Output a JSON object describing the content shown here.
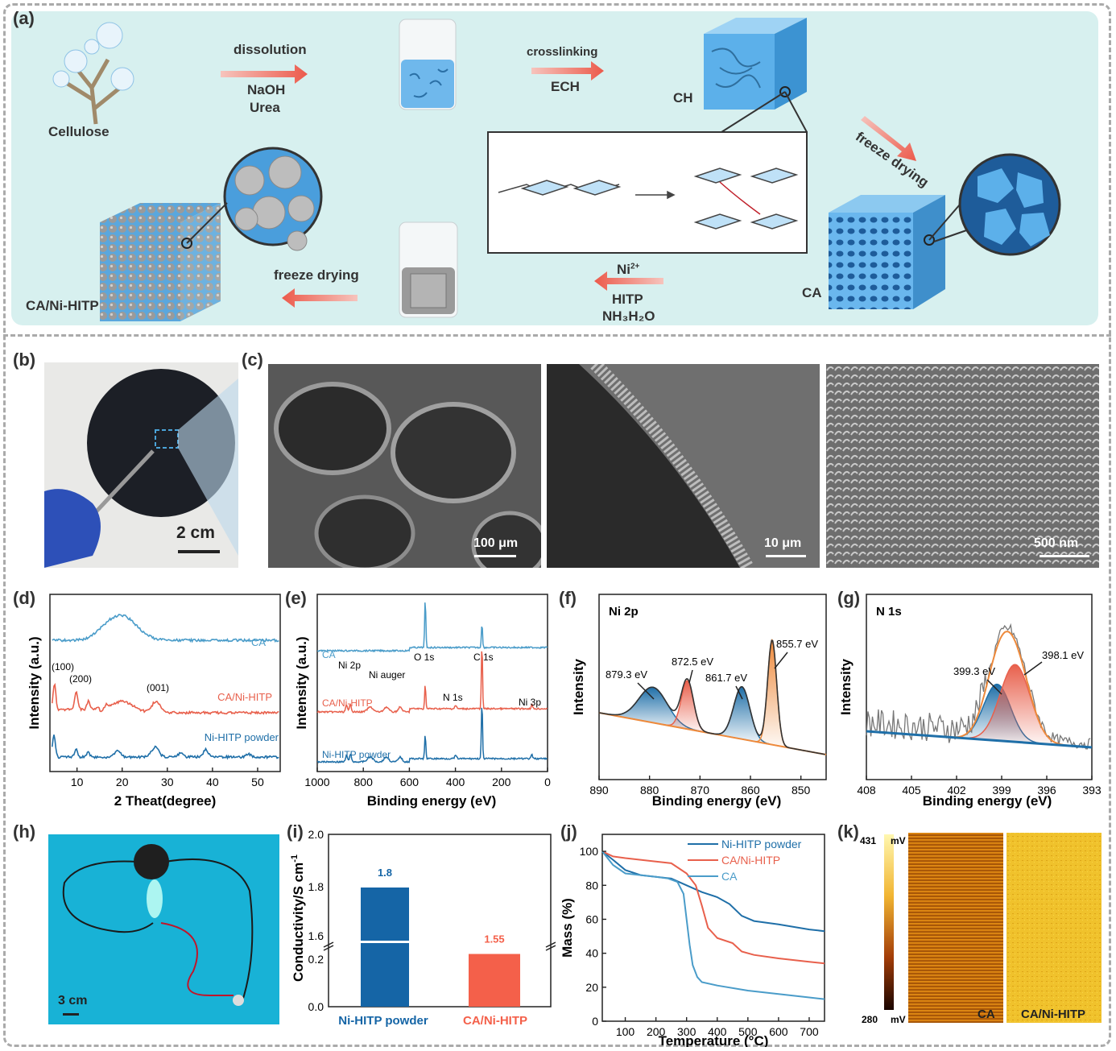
{
  "panels": {
    "a": "(a)",
    "b": "(b)",
    "c": "(c)",
    "d": "(d)",
    "e": "(e)",
    "f": "(f)",
    "g": "(g)",
    "h": "(h)",
    "i": "(i)",
    "j": "(j)",
    "k": "(k)"
  },
  "scheme": {
    "cellulose": "Cellulose",
    "dissolution": "dissolution",
    "naoh": "NaOH",
    "urea": "Urea",
    "crosslinking": "crosslinking",
    "ech": "ECH",
    "ch": "CH",
    "freeze_drying_1": "freeze drying",
    "ca": "CA",
    "ni": "Ni",
    "ni_sup": "2+",
    "hitp": "HITP",
    "nh3h2o": "NH₃H₂O",
    "freeze_drying_2": "freeze drying",
    "cani": "CA/Ni-HITP"
  },
  "photo_b": {
    "scale": "2 cm"
  },
  "sem": {
    "s1": "100 μm",
    "s2": "10 μm",
    "s3": "500 nm"
  },
  "photo_h": {
    "scale": "3 cm"
  },
  "colors": {
    "ca": "#4a9cc9",
    "cani": "#e8604c",
    "nihitp": "#1f6fa8",
    "bar_blue": "#1565a6",
    "bar_red": "#f4604a"
  },
  "chart_data": [
    {
      "id": "d",
      "type": "line",
      "xlabel": "2 Theat(degree)",
      "ylabel": "Intensity (a.u.)",
      "xlim": [
        4,
        55
      ],
      "xticks": [
        10,
        20,
        30,
        40,
        50
      ],
      "series": [
        {
          "name": "CA"
        },
        {
          "name": "CA/Ni-HITP"
        },
        {
          "name": "Ni-HITP powder"
        }
      ],
      "annotations": [
        "(100)",
        "(200)",
        "(001)"
      ]
    },
    {
      "id": "e",
      "type": "line",
      "xlabel": "Binding energy (eV)",
      "ylabel": "Intensity (a.u.)",
      "xlim": [
        1000,
        0
      ],
      "xticks": [
        1000,
        800,
        600,
        400,
        200,
        0
      ],
      "series": [
        {
          "name": "CA"
        },
        {
          "name": "CA/Ni-HITP"
        },
        {
          "name": "Ni-HITP powder"
        }
      ],
      "annotations": [
        "O 1s",
        "C 1s",
        "Ni 2p",
        "Ni auger",
        "N 1s",
        "Ni 3p"
      ]
    },
    {
      "id": "f",
      "type": "line",
      "title": "Ni 2p",
      "xlabel": "Binding energy (eV)",
      "ylabel": "Intensity",
      "xlim": [
        890,
        845
      ],
      "xticks": [
        890,
        880,
        870,
        860,
        850
      ],
      "peaks": [
        {
          "label": "879.3 eV",
          "x": 879.3
        },
        {
          "label": "872.5 eV",
          "x": 872.5
        },
        {
          "label": "861.7 eV",
          "x": 861.7
        },
        {
          "label": "855.7 eV",
          "x": 855.7
        }
      ]
    },
    {
      "id": "g",
      "type": "line",
      "title": "N 1s",
      "xlabel": "Binding energy (eV)",
      "ylabel": "Intensity",
      "xlim": [
        408,
        393
      ],
      "xticks": [
        408,
        405,
        402,
        399,
        396,
        393
      ],
      "peaks": [
        {
          "label": "399.3 eV",
          "x": 399.3
        },
        {
          "label": "398.1 eV",
          "x": 398.1
        }
      ]
    },
    {
      "id": "i",
      "type": "bar",
      "ylabel": "Conductivity/S cm",
      "ylabel_sup": "-1",
      "categories": [
        "Ni-HITP powder",
        "CA/Ni-HITP"
      ],
      "values": [
        1.8,
        1.55
      ],
      "value_labels": [
        "1.8",
        "1.55"
      ],
      "yticks_top": [
        "2.0",
        "1.8",
        "1.6"
      ],
      "yticks_bottom": [
        "0.2",
        "0.0"
      ]
    },
    {
      "id": "j",
      "type": "line",
      "xlabel": "Temperature (°C)",
      "ylabel": "Mass (%)",
      "xlim": [
        25,
        750
      ],
      "ylim": [
        0,
        110
      ],
      "xticks": [
        100,
        200,
        300,
        400,
        500,
        600,
        700
      ],
      "yticks": [
        0,
        20,
        40,
        60,
        80,
        100
      ],
      "series": [
        {
          "name": "Ni-HITP powder",
          "points": [
            [
              25,
              100
            ],
            [
              60,
              95
            ],
            [
              100,
              89
            ],
            [
              150,
              86
            ],
            [
              200,
              85
            ],
            [
              250,
              84
            ],
            [
              300,
              80
            ],
            [
              350,
              76
            ],
            [
              400,
              73
            ],
            [
              440,
              69
            ],
            [
              480,
              62
            ],
            [
              520,
              59
            ],
            [
              600,
              57
            ],
            [
              700,
              54
            ],
            [
              750,
              53
            ]
          ]
        },
        {
          "name": "CA/Ni-HITP",
          "points": [
            [
              25,
              100
            ],
            [
              60,
              97
            ],
            [
              100,
              96
            ],
            [
              150,
              95
            ],
            [
              200,
              94
            ],
            [
              250,
              93
            ],
            [
              300,
              87
            ],
            [
              330,
              80
            ],
            [
              350,
              68
            ],
            [
              370,
              55
            ],
            [
              400,
              49
            ],
            [
              450,
              46
            ],
            [
              480,
              41
            ],
            [
              520,
              39
            ],
            [
              600,
              37
            ],
            [
              700,
              35
            ],
            [
              750,
              34
            ]
          ]
        },
        {
          "name": "CA",
          "points": [
            [
              25,
              100
            ],
            [
              60,
              92
            ],
            [
              100,
              87
            ],
            [
              150,
              86
            ],
            [
              200,
              85
            ],
            [
              240,
              84
            ],
            [
              270,
              82
            ],
            [
              290,
              75
            ],
            [
              300,
              60
            ],
            [
              310,
              45
            ],
            [
              320,
              33
            ],
            [
              335,
              26
            ],
            [
              350,
              23
            ],
            [
              400,
              21
            ],
            [
              500,
              18
            ],
            [
              600,
              16
            ],
            [
              700,
              14
            ],
            [
              750,
              13
            ]
          ]
        }
      ]
    },
    {
      "id": "k",
      "type": "heatmap",
      "scale_max": "431",
      "scale_min": "280",
      "unit": "mV",
      "panels": [
        "CA",
        "CA/Ni-HITP"
      ]
    }
  ]
}
